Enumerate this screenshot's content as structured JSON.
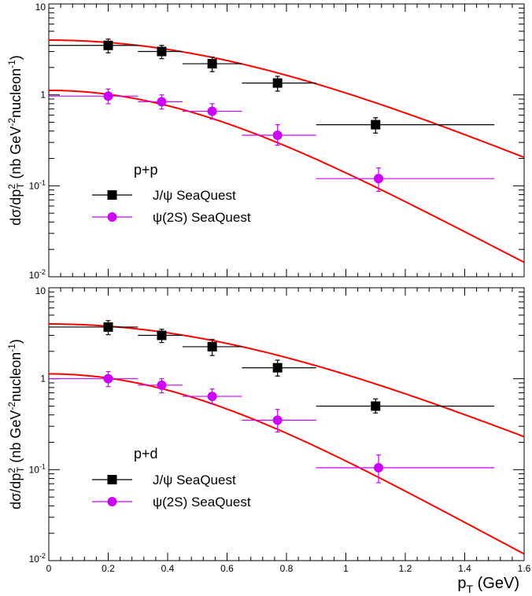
{
  "figure": {
    "xlabel_main": "p",
    "xlabel_sub": "T",
    "xlabel_unit": " (GeV)",
    "ylabel_parts": [
      "dσ/dp",
      "2",
      "T",
      " (nb GeV",
      "-2",
      "nucleon",
      "-1",
      ")"
    ],
    "x_ticks": [
      "0",
      "0.2",
      "0.4",
      "0.6",
      "0.8",
      "1",
      "1.2",
      "1.4",
      "1.6"
    ],
    "y_ticks": [
      {
        "base": "10",
        "exp": "",
        "value": 10
      },
      {
        "base": "1",
        "exp": "",
        "value": 1
      },
      {
        "base": "10",
        "exp": "-1",
        "value": 0.1
      },
      {
        "base": "10",
        "exp": "-2",
        "value": 0.01
      }
    ]
  },
  "chart_data": [
    {
      "type": "scatter",
      "panel_label": "p+p",
      "xlim": [
        0,
        1.6
      ],
      "ylim": [
        0.01,
        10
      ],
      "yscale": "log",
      "legend": [
        {
          "label": "J/ψ SeaQuest",
          "marker": "square",
          "color": "#000000"
        },
        {
          "label": "ψ(2S) SeaQuest",
          "marker": "circle",
          "color": "#cc00ff"
        }
      ],
      "series": [
        {
          "name": "J/ψ SeaQuest",
          "color": "#000000",
          "marker": "square",
          "points": [
            {
              "x": 0.2,
              "xlo": 0.0,
              "xhi": 0.3,
              "y": 3.5,
              "ylo": 2.9,
              "yhi": 4.1
            },
            {
              "x": 0.38,
              "xlo": 0.3,
              "xhi": 0.45,
              "y": 3.0,
              "ylo": 2.5,
              "yhi": 3.5
            },
            {
              "x": 0.55,
              "xlo": 0.45,
              "xhi": 0.65,
              "y": 2.2,
              "ylo": 1.8,
              "yhi": 2.6
            },
            {
              "x": 0.77,
              "xlo": 0.65,
              "xhi": 0.9,
              "y": 1.35,
              "ylo": 1.1,
              "yhi": 1.6
            },
            {
              "x": 1.1,
              "xlo": 0.9,
              "xhi": 1.5,
              "y": 0.47,
              "ylo": 0.38,
              "yhi": 0.56
            }
          ]
        },
        {
          "name": "ψ(2S) SeaQuest",
          "color": "#cc00ff",
          "marker": "circle",
          "points": [
            {
              "x": 0.2,
              "xlo": 0.0,
              "xhi": 0.3,
              "y": 0.97,
              "ylo": 0.8,
              "yhi": 1.16
            },
            {
              "x": 0.38,
              "xlo": 0.3,
              "xhi": 0.45,
              "y": 0.84,
              "ylo": 0.7,
              "yhi": 1.0
            },
            {
              "x": 0.55,
              "xlo": 0.45,
              "xhi": 0.65,
              "y": 0.66,
              "ylo": 0.54,
              "yhi": 0.8
            },
            {
              "x": 0.77,
              "xlo": 0.65,
              "xhi": 0.9,
              "y": 0.36,
              "ylo": 0.28,
              "yhi": 0.47
            },
            {
              "x": 1.11,
              "xlo": 0.9,
              "xhi": 1.5,
              "y": 0.12,
              "ylo": 0.087,
              "yhi": 0.157
            }
          ]
        }
      ],
      "fits": [
        {
          "color": "#ff0000",
          "A": 4.0,
          "n": 6,
          "p0": 2.0,
          "xmax": 1.6
        },
        {
          "color": "#ff0000",
          "A": 1.12,
          "n": 6,
          "p0": 1.55,
          "xmax": 1.6
        }
      ]
    },
    {
      "type": "scatter",
      "panel_label": "p+d",
      "xlim": [
        0,
        1.6
      ],
      "ylim": [
        0.01,
        10
      ],
      "yscale": "log",
      "legend": [
        {
          "label": "J/ψ SeaQuest",
          "marker": "square",
          "color": "#000000"
        },
        {
          "label": "ψ(2S) SeaQuest",
          "marker": "circle",
          "color": "#cc00ff"
        }
      ],
      "series": [
        {
          "name": "J/ψ SeaQuest",
          "color": "#000000",
          "marker": "square",
          "points": [
            {
              "x": 0.2,
              "xlo": 0.0,
              "xhi": 0.3,
              "y": 3.7,
              "ylo": 3.05,
              "yhi": 4.35
            },
            {
              "x": 0.38,
              "xlo": 0.3,
              "xhi": 0.45,
              "y": 3.0,
              "ylo": 2.5,
              "yhi": 3.5
            },
            {
              "x": 0.55,
              "xlo": 0.45,
              "xhi": 0.65,
              "y": 2.25,
              "ylo": 1.8,
              "yhi": 2.7
            },
            {
              "x": 0.77,
              "xlo": 0.65,
              "xhi": 0.9,
              "y": 1.32,
              "ylo": 1.07,
              "yhi": 1.6
            },
            {
              "x": 1.1,
              "xlo": 0.9,
              "xhi": 1.5,
              "y": 0.5,
              "ylo": 0.42,
              "yhi": 0.6
            }
          ]
        },
        {
          "name": "ψ(2S) SeaQuest",
          "color": "#cc00ff",
          "marker": "circle",
          "points": [
            {
              "x": 0.2,
              "xlo": 0.0,
              "xhi": 0.3,
              "y": 1.0,
              "ylo": 0.82,
              "yhi": 1.2
            },
            {
              "x": 0.38,
              "xlo": 0.3,
              "xhi": 0.45,
              "y": 0.85,
              "ylo": 0.7,
              "yhi": 1.0
            },
            {
              "x": 0.55,
              "xlo": 0.45,
              "xhi": 0.65,
              "y": 0.64,
              "ylo": 0.53,
              "yhi": 0.77
            },
            {
              "x": 0.77,
              "xlo": 0.65,
              "xhi": 0.9,
              "y": 0.35,
              "ylo": 0.26,
              "yhi": 0.46
            },
            {
              "x": 1.11,
              "xlo": 0.9,
              "xhi": 1.5,
              "y": 0.105,
              "ylo": 0.072,
              "yhi": 0.145
            }
          ]
        }
      ],
      "fits": [
        {
          "color": "#ff0000",
          "A": 4.0,
          "n": 6,
          "p0": 2.05,
          "xmax": 1.6
        },
        {
          "color": "#ff0000",
          "A": 1.13,
          "n": 6,
          "p0": 1.5,
          "xmax": 1.6
        }
      ]
    }
  ]
}
